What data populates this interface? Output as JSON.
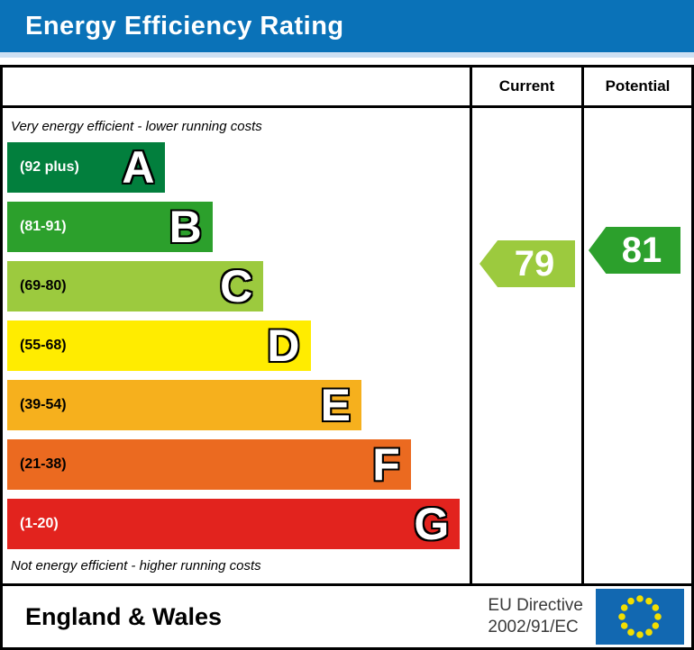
{
  "title": "Energy Efficiency Rating",
  "columns": {
    "current": "Current",
    "potential": "Potential"
  },
  "captions": {
    "top": "Very energy efficient - lower running costs",
    "bottom": "Not energy efficient - higher running costs"
  },
  "bands": [
    {
      "letter": "A",
      "range": "(92 plus)",
      "color": "#027F3D",
      "text_color": "#ffffff",
      "width_pct": 34.2
    },
    {
      "letter": "B",
      "range": "(81-91)",
      "color": "#2CA02C",
      "text_color": "#ffffff",
      "width_pct": 44.4
    },
    {
      "letter": "C",
      "range": "(69-80)",
      "color": "#9CCA3E",
      "text_color": "#000000",
      "width_pct": 55.4
    },
    {
      "letter": "D",
      "range": "(55-68)",
      "color": "#FFEC00",
      "text_color": "#000000",
      "width_pct": 65.6
    },
    {
      "letter": "E",
      "range": "(39-54)",
      "color": "#F6B01D",
      "text_color": "#000000",
      "width_pct": 76.6
    },
    {
      "letter": "F",
      "range": "(21-38)",
      "color": "#EB6A20",
      "text_color": "#000000",
      "width_pct": 87.3
    },
    {
      "letter": "G",
      "range": "(1-20)",
      "color": "#E2231E",
      "text_color": "#ffffff",
      "width_pct": 97.9
    }
  ],
  "ratings": {
    "current": {
      "value": "79",
      "band": "C",
      "color": "#9CCA3E"
    },
    "potential": {
      "value": "81",
      "band": "B",
      "color": "#2CA02C"
    }
  },
  "footer": {
    "region": "England & Wales",
    "directive_line1": "EU Directive",
    "directive_line2": "2002/91/EC",
    "flag": {
      "icon": "eu-flag-icon",
      "background": "#1268B1",
      "star_color": "#F2DE00"
    }
  },
  "theme": {
    "header_bg": "#0A72B8",
    "header_accent": "#CDE0F3",
    "border": "#000000"
  },
  "chart_data": {
    "type": "bar",
    "orientation": "horizontal",
    "title": "Energy Efficiency Rating",
    "categories": [
      "A",
      "B",
      "C",
      "D",
      "E",
      "F",
      "G"
    ],
    "range_labels": [
      "(92 plus)",
      "(81-91)",
      "(69-80)",
      "(55-68)",
      "(39-54)",
      "(21-38)",
      "(1-20)"
    ],
    "band_ranges": [
      [
        92,
        100
      ],
      [
        81,
        91
      ],
      [
        69,
        80
      ],
      [
        55,
        68
      ],
      [
        39,
        54
      ],
      [
        21,
        38
      ],
      [
        1,
        20
      ]
    ],
    "band_colors": [
      "#027F3D",
      "#2CA02C",
      "#9CCA3E",
      "#FFEC00",
      "#F6B01D",
      "#EB6A20",
      "#E2231E"
    ],
    "bar_widths_pct": [
      34.2,
      44.4,
      55.4,
      65.6,
      76.6,
      87.3,
      97.9
    ],
    "current": 79,
    "potential": 81,
    "current_band": "C",
    "potential_band": "B",
    "top_caption": "Very energy efficient - lower running costs",
    "bottom_caption": "Not energy efficient - higher running costs",
    "footer_region": "England & Wales",
    "footer_directive": "EU Directive 2002/91/EC"
  }
}
